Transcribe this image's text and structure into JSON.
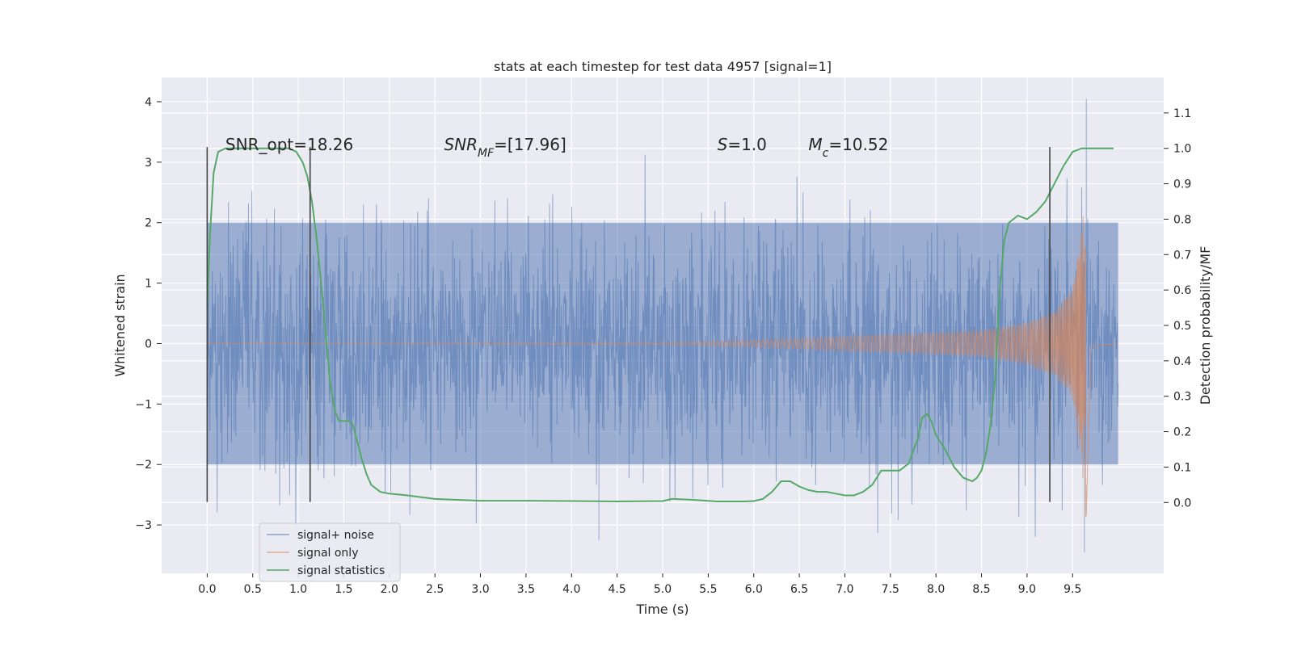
{
  "chart_data": {
    "type": "line",
    "title": "stats at each timestep for test data 4957 [signal=1]",
    "xlabel": "Time (s)",
    "ylabel": "Whitened strain",
    "y2label": "Detection probability/MF",
    "xlim": [
      -0.5,
      10.5
    ],
    "ylim": [
      -3.8,
      4.4
    ],
    "y2lim": [
      -0.2,
      1.2
    ],
    "xticks": [
      "0.0",
      "0.5",
      "1.0",
      "1.5",
      "2.0",
      "2.5",
      "3.0",
      "3.5",
      "4.0",
      "4.5",
      "5.0",
      "5.5",
      "6.0",
      "6.5",
      "7.0",
      "7.5",
      "8.0",
      "8.5",
      "9.0",
      "9.5"
    ],
    "xtick_values": [
      0,
      0.5,
      1,
      1.5,
      2,
      2.5,
      3,
      3.5,
      4,
      4.5,
      5,
      5.5,
      6,
      6.5,
      7,
      7.5,
      8,
      8.5,
      9,
      9.5
    ],
    "yticks": [
      "−3",
      "−2",
      "−1",
      "0",
      "1",
      "2",
      "3",
      "4"
    ],
    "ytick_values": [
      -3,
      -2,
      -1,
      0,
      1,
      2,
      3,
      4
    ],
    "y2ticks": [
      "0.0",
      "0.1",
      "0.2",
      "0.3",
      "0.4",
      "0.5",
      "0.6",
      "0.7",
      "0.8",
      "0.9",
      "1.0",
      "1.1"
    ],
    "y2tick_values": [
      0,
      0.1,
      0.2,
      0.3,
      0.4,
      0.5,
      0.6,
      0.7,
      0.8,
      0.9,
      1.0,
      1.1
    ],
    "grid": true,
    "legend_position": "bottom-left",
    "annotations": [
      {
        "x": 0.2,
        "y": 3.2,
        "parts": [
          {
            "text": "SNR_opt=18.26"
          }
        ]
      },
      {
        "x": 2.6,
        "y": 3.2,
        "parts": [
          {
            "text": "SNR",
            "italic": true
          },
          {
            "text": "MF",
            "italic": true,
            "sub": true
          },
          {
            "text": "=[17.96]"
          }
        ]
      },
      {
        "x": 5.6,
        "y": 3.2,
        "parts": [
          {
            "text": "S",
            "italic": true
          },
          {
            "text": "=1.0"
          }
        ]
      },
      {
        "x": 6.6,
        "y": 3.2,
        "parts": [
          {
            "text": "M",
            "italic": true
          },
          {
            "text": "c",
            "italic": true,
            "sub": true
          },
          {
            "text": "=10.52"
          }
        ]
      }
    ],
    "vertical_lines": [
      0.0,
      1.13,
      9.25
    ],
    "vline_yrange": [
      -2.62,
      3.25
    ],
    "series": [
      {
        "name": "signal+ noise",
        "color": "#4c72b0",
        "kind": "dense_noise",
        "x_range": [
          0.0,
          10.0
        ],
        "band_inner": [
          -2.0,
          2.0
        ],
        "y_max": 4.05,
        "y_min": -3.45,
        "notable_peaks": [
          {
            "x": 9.65,
            "y": 4.05
          },
          {
            "x": 9.63,
            "y": -3.45
          },
          {
            "x": 4.3,
            "y": -3.25
          }
        ]
      },
      {
        "name": "signal only",
        "color": "#dd8452",
        "kind": "chirp",
        "x_range": [
          0.0,
          10.0
        ],
        "merger_time": 9.65,
        "envelope": [
          [
            0.0,
            0.0
          ],
          [
            5.0,
            0.02
          ],
          [
            6.0,
            0.06
          ],
          [
            7.0,
            0.12
          ],
          [
            8.0,
            0.18
          ],
          [
            8.5,
            0.22
          ],
          [
            9.0,
            0.35
          ],
          [
            9.3,
            0.55
          ],
          [
            9.5,
            0.9
          ],
          [
            9.6,
            2.0
          ],
          [
            9.65,
            3.1
          ],
          [
            9.7,
            0.05
          ],
          [
            10.0,
            0.0
          ]
        ]
      },
      {
        "name": "signal statistics",
        "color": "#55a868",
        "axis": "right",
        "x": [
          0.0,
          0.03,
          0.07,
          0.12,
          0.2,
          0.3,
          0.5,
          0.7,
          0.9,
          0.98,
          1.05,
          1.1,
          1.15,
          1.2,
          1.25,
          1.3,
          1.35,
          1.4,
          1.45,
          1.5,
          1.55,
          1.6,
          1.65,
          1.7,
          1.75,
          1.8,
          1.9,
          2.0,
          2.2,
          2.5,
          3.0,
          3.5,
          4.0,
          4.5,
          5.0,
          5.1,
          5.3,
          5.6,
          5.9,
          6.0,
          6.1,
          6.2,
          6.3,
          6.4,
          6.5,
          6.6,
          6.7,
          6.8,
          6.9,
          7.0,
          7.1,
          7.2,
          7.3,
          7.4,
          7.5,
          7.6,
          7.7,
          7.8,
          7.85,
          7.9,
          7.95,
          8.0,
          8.1,
          8.2,
          8.3,
          8.4,
          8.45,
          8.5,
          8.55,
          8.6,
          8.65,
          8.7,
          8.75,
          8.8,
          8.9,
          9.0,
          9.1,
          9.2,
          9.3,
          9.4,
          9.5,
          9.6,
          9.7,
          9.8,
          9.9,
          9.95
        ],
        "y": [
          0.55,
          0.75,
          0.93,
          0.99,
          1.0,
          1.0,
          1.0,
          1.0,
          1.0,
          0.99,
          0.96,
          0.92,
          0.85,
          0.75,
          0.62,
          0.48,
          0.34,
          0.26,
          0.23,
          0.23,
          0.23,
          0.22,
          0.17,
          0.12,
          0.08,
          0.05,
          0.03,
          0.025,
          0.02,
          0.01,
          0.005,
          0.005,
          0.004,
          0.003,
          0.004,
          0.01,
          0.008,
          0.003,
          0.003,
          0.004,
          0.01,
          0.03,
          0.06,
          0.06,
          0.045,
          0.035,
          0.03,
          0.03,
          0.025,
          0.02,
          0.02,
          0.03,
          0.05,
          0.09,
          0.09,
          0.09,
          0.11,
          0.18,
          0.24,
          0.25,
          0.23,
          0.19,
          0.15,
          0.1,
          0.07,
          0.06,
          0.07,
          0.09,
          0.14,
          0.22,
          0.35,
          0.6,
          0.74,
          0.79,
          0.81,
          0.8,
          0.82,
          0.85,
          0.9,
          0.95,
          0.99,
          1.0,
          1.0,
          1.0,
          1.0,
          1.0
        ]
      }
    ]
  }
}
